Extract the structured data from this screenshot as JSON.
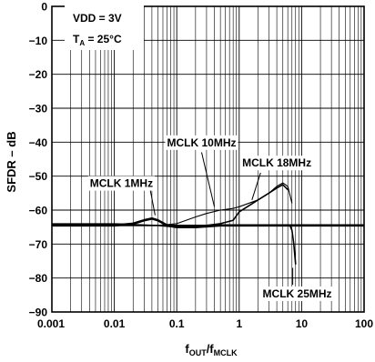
{
  "chart_data": {
    "type": "line",
    "xscale": "log",
    "xlim": [
      0.001,
      100
    ],
    "ylim": [
      -90,
      0
    ],
    "grid": true,
    "xticks": [
      {
        "value": 0.001,
        "label": "0.001"
      },
      {
        "value": 0.01,
        "label": "0.01"
      },
      {
        "value": 0.1,
        "label": "0.1"
      },
      {
        "value": 1,
        "label": "1"
      },
      {
        "value": 10,
        "label": "10"
      },
      {
        "value": 100,
        "label": "100"
      }
    ],
    "yticks": [
      {
        "value": 0,
        "label": "0"
      },
      {
        "value": -10,
        "label": "−10"
      },
      {
        "value": -20,
        "label": "−20"
      },
      {
        "value": -30,
        "label": "−30"
      },
      {
        "value": -40,
        "label": "−40"
      },
      {
        "value": -50,
        "label": "−50"
      },
      {
        "value": -60,
        "label": "−60"
      },
      {
        "value": -70,
        "label": "−70"
      },
      {
        "value": -80,
        "label": "−80"
      },
      {
        "value": -90,
        "label": "−90"
      }
    ],
    "ylabel": "SFDR – dB",
    "xlabel": {
      "main": "f",
      "sub1": "OUT",
      "slash": "/f",
      "sub2": "MCLK"
    },
    "conditions": {
      "vdd": "VDD = 3V",
      "ta_main": "T",
      "ta_sub": "A",
      "ta_value": " = 25°C"
    },
    "series": [
      {
        "name": "MCLK 1MHz",
        "x": [
          0.001,
          0.003,
          0.01,
          0.02,
          0.03,
          0.04,
          0.05,
          0.07,
          0.1,
          0.2,
          0.5,
          1,
          2,
          5,
          10,
          20,
          50,
          100
        ],
        "y": [
          -64.5,
          -64.5,
          -64.5,
          -64,
          -63,
          -62.5,
          -63,
          -64.5,
          -65,
          -65,
          -64.5,
          -64.5,
          -64.5,
          -64.5,
          -64.5,
          -64.5,
          -64.5,
          -64.5
        ]
      },
      {
        "name": "MCLK 10MHz",
        "x": [
          0.001,
          0.01,
          0.05,
          0.1,
          0.2,
          0.3,
          0.5,
          0.8,
          1,
          2,
          3,
          4,
          5,
          6,
          7
        ],
        "y": [
          -64,
          -64,
          -64.5,
          -64,
          -62,
          -61,
          -60,
          -59.5,
          -59,
          -57,
          -55,
          -53,
          -52,
          -53,
          -58
        ]
      },
      {
        "name": "MCLK 18MHz",
        "x": [
          0.001,
          0.01,
          0.05,
          0.1,
          0.3,
          0.5,
          0.8,
          1,
          2,
          3,
          4,
          5,
          6
        ],
        "y": [
          -64.5,
          -64.5,
          -64.5,
          -65,
          -64.5,
          -64,
          -63,
          -60.5,
          -57,
          -55,
          -53.5,
          -52.5,
          -54
        ]
      },
      {
        "name": "MCLK  25MHz",
        "x": [
          0.001,
          0.01,
          0.1,
          1,
          3,
          5,
          6,
          6.5,
          7,
          7.5,
          8
        ],
        "y": [
          -64.5,
          -64.5,
          -64.5,
          -64.5,
          -64.5,
          -64.5,
          -64.5,
          -64.5,
          -66,
          -70,
          -76
        ]
      }
    ],
    "annotations": [
      {
        "text": "MCLK 10MHz",
        "x": 0.25,
        "y": -40
      },
      {
        "text": "MCLK 18MHz",
        "x": 4.0,
        "y": -46
      },
      {
        "text": "MCLK 1MHz",
        "x": 0.013,
        "y": -52
      },
      {
        "text": "MCLK  25MHz",
        "x": 8.5,
        "y": -84.5
      }
    ]
  }
}
